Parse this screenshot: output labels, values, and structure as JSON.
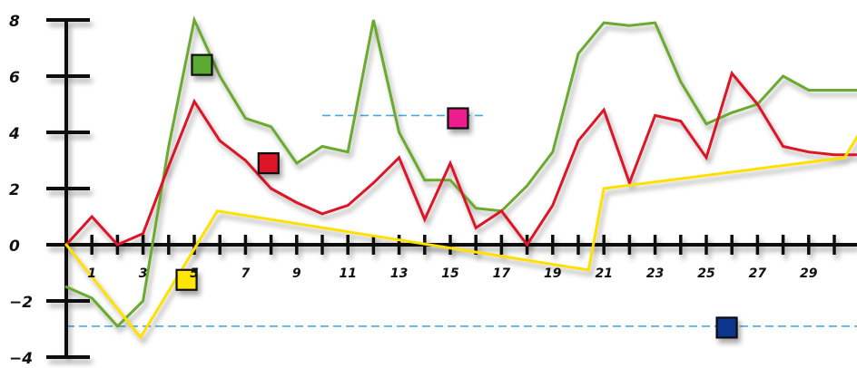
{
  "chart_data": {
    "type": "line",
    "title": "",
    "xlabel": "",
    "ylabel": "",
    "xlim": [
      0,
      31
    ],
    "ylim": [
      -4,
      8
    ],
    "x_ticks": [
      1,
      3,
      5,
      7,
      9,
      11,
      13,
      15,
      17,
      19,
      21,
      23,
      25,
      27,
      29
    ],
    "y_ticks": [
      8,
      6,
      4,
      2,
      0,
      -2,
      -4
    ],
    "grid": false,
    "legend": "none",
    "series": [
      {
        "color": "#6aaa2e",
        "x": [
          0,
          1,
          2,
          3,
          4,
          5,
          6,
          7,
          8,
          9,
          10,
          11,
          12,
          13,
          14,
          15,
          16,
          17,
          18,
          19,
          20,
          21,
          22,
          23,
          24,
          25,
          26,
          27,
          28,
          29,
          30,
          31
        ],
        "y": [
          -1.5,
          -1.9,
          -2.9,
          -2.0,
          3.5,
          8.0,
          6.0,
          4.5,
          4.2,
          2.9,
          3.5,
          3.3,
          8.0,
          4.0,
          2.3,
          2.3,
          1.3,
          1.2,
          2.1,
          3.3,
          6.8,
          7.9,
          7.8,
          7.9,
          5.8,
          4.3,
          4.7,
          5.0,
          6.0,
          5.5,
          5.5,
          5.5
        ]
      },
      {
        "color": "#dc1428",
        "x": [
          0,
          1,
          2,
          3,
          4,
          5,
          6,
          7,
          8,
          9,
          10,
          11,
          12,
          13,
          14,
          15,
          16,
          17,
          18,
          19,
          20,
          21,
          22,
          23,
          24,
          25,
          26,
          27,
          28,
          29,
          30,
          31
        ],
        "y": [
          0.0,
          1.0,
          0.0,
          0.4,
          2.8,
          5.1,
          3.7,
          3.0,
          2.0,
          1.5,
          1.1,
          1.4,
          2.2,
          3.1,
          0.9,
          2.9,
          0.6,
          1.2,
          0.0,
          1.4,
          3.7,
          4.8,
          2.2,
          4.6,
          4.4,
          3.1,
          6.1,
          5.0,
          3.5,
          3.3,
          3.2,
          3.2
        ]
      },
      {
        "color": "#ffe000",
        "x": [
          0,
          2.9,
          5.9,
          20.4,
          21.0,
          30.4,
          31.0
        ],
        "y": [
          0.0,
          -3.3,
          1.2,
          -0.9,
          2.0,
          3.1,
          4.0
        ]
      }
    ],
    "reference_lines": [
      {
        "y": -2.9,
        "x_range": [
          0,
          31
        ],
        "color": "#4aa8dc",
        "style": "dashed"
      },
      {
        "y": 4.6,
        "x_range": [
          10,
          16.3
        ],
        "color": "#4aa8dc",
        "style": "dashed"
      }
    ],
    "markers": [
      {
        "x": 5.3,
        "y": 6.4,
        "color": "#5aaa32"
      },
      {
        "x": 7.9,
        "y": 2.9,
        "color": "#dc1428"
      },
      {
        "x": 15.3,
        "y": 4.5,
        "color": "#ee1e8c"
      },
      {
        "x": 4.7,
        "y": -1.25,
        "color": "#ffe600"
      },
      {
        "x": 25.8,
        "y": -2.95,
        "color": "#10368c"
      }
    ],
    "axis_color": "#111111"
  }
}
